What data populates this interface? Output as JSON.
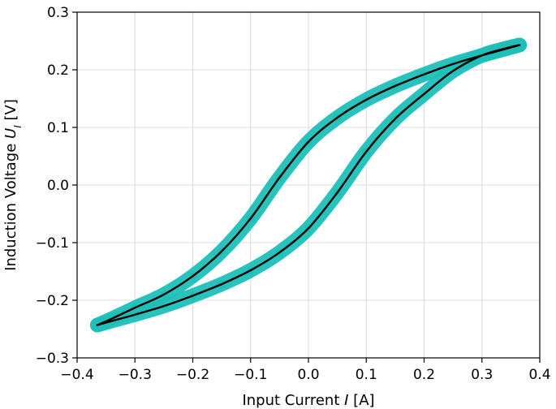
{
  "chart_data": {
    "type": "line",
    "title": "",
    "xlabel": "Input Current",
    "xlabel_symbol": "I",
    "xlabel_unit": "[A]",
    "ylabel": "Induction Voltage",
    "ylabel_symbol": "U",
    "ylabel_subscript": "I",
    "ylabel_unit": "[V]",
    "xlim": [
      -0.4,
      0.4
    ],
    "ylim": [
      -0.3,
      0.3
    ],
    "x_ticks": [
      -0.4,
      -0.3,
      -0.2,
      -0.1,
      0.0,
      0.1,
      0.2,
      0.3,
      0.4
    ],
    "x_tick_labels": [
      "−0.4",
      "−0.3",
      "−0.2",
      "−0.1",
      "0.0",
      "0.1",
      "0.2",
      "0.3",
      "0.4"
    ],
    "y_ticks": [
      -0.3,
      -0.2,
      -0.1,
      0.0,
      0.1,
      0.2,
      0.3
    ],
    "y_tick_labels": [
      "−0.3",
      "−0.2",
      "−0.1",
      "0.0",
      "0.1",
      "0.2",
      "0.3"
    ],
    "grid": true,
    "legend": "none",
    "series": [
      {
        "style": "scatter",
        "color": "#1fbfb8",
        "branches": [
          {
            "x": [
              -0.365,
              -0.34,
              -0.3,
              -0.25,
              -0.2,
              -0.15,
              -0.1,
              -0.05,
              0.0,
              0.05,
              0.1,
              0.15,
              0.2,
              0.25,
              0.3,
              0.34,
              0.365
            ],
            "y": [
              -0.243,
              -0.232,
              -0.213,
              -0.19,
              -0.158,
              -0.115,
              -0.058,
              0.013,
              0.075,
              0.117,
              0.148,
              0.172,
              0.192,
              0.21,
              0.225,
              0.236,
              0.243
            ]
          },
          {
            "x": [
              0.365,
              0.34,
              0.3,
              0.25,
              0.2,
              0.15,
              0.1,
              0.05,
              0.0,
              -0.05,
              -0.1,
              -0.15,
              -0.2,
              -0.25,
              -0.3,
              -0.34,
              -0.365
            ],
            "y": [
              0.243,
              0.237,
              0.225,
              0.198,
              0.158,
              0.115,
              0.058,
              -0.013,
              -0.075,
              -0.117,
              -0.148,
              -0.172,
              -0.192,
              -0.21,
              -0.225,
              -0.236,
              -0.243
            ]
          }
        ]
      },
      {
        "style": "line",
        "color": "#000000",
        "branches": [
          {
            "x": [
              -0.365,
              -0.34,
              -0.3,
              -0.25,
              -0.2,
              -0.15,
              -0.1,
              -0.05,
              0.0,
              0.05,
              0.1,
              0.15,
              0.2,
              0.25,
              0.3,
              0.34,
              0.365
            ],
            "y": [
              -0.243,
              -0.232,
              -0.213,
              -0.19,
              -0.158,
              -0.115,
              -0.058,
              0.013,
              0.075,
              0.117,
              0.148,
              0.172,
              0.192,
              0.21,
              0.225,
              0.236,
              0.243
            ]
          },
          {
            "x": [
              0.365,
              0.34,
              0.3,
              0.25,
              0.2,
              0.15,
              0.1,
              0.05,
              0.0,
              -0.05,
              -0.1,
              -0.15,
              -0.2,
              -0.25,
              -0.3,
              -0.34,
              -0.365
            ],
            "y": [
              0.243,
              0.237,
              0.225,
              0.198,
              0.158,
              0.115,
              0.058,
              -0.013,
              -0.075,
              -0.117,
              -0.148,
              -0.172,
              -0.192,
              -0.21,
              -0.225,
              -0.236,
              -0.243
            ]
          }
        ]
      }
    ]
  }
}
